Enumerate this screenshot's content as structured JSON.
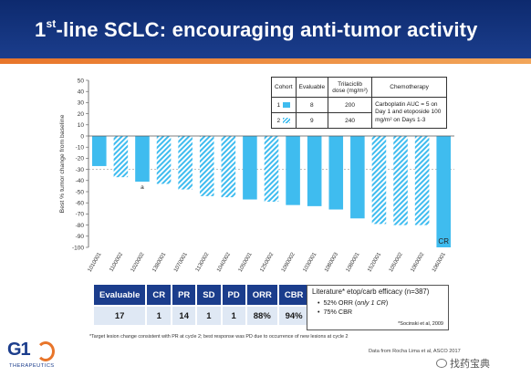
{
  "slide": {
    "title_prefix": "1",
    "title_sup": "st",
    "title_rest": "-line SCLC: encouraging anti-tumor activity",
    "footnote": "*Target lesion change consistent with PR at cycle 2; best response was PD due to occurrence of new lesions at cycle 2",
    "source": "Data from Rocha Lima et al, ASCO 2017",
    "logo_main": "G1",
    "logo_sub": "THERAPEUTICS",
    "watermark": "找药宝典"
  },
  "colors": {
    "navy": "#1b3d8c",
    "bar": "#3fbcef",
    "accent": "#e8752a"
  },
  "chart_data": {
    "type": "bar",
    "ylabel": "Best % tumor change from baseline",
    "ylim": [
      -100,
      50
    ],
    "yticks": [
      50,
      40,
      30,
      20,
      10,
      0,
      -10,
      -20,
      -30,
      -40,
      -50,
      -60,
      -70,
      -80,
      -90,
      -100
    ],
    "reference_line": -30,
    "categories": [
      "1010001",
      "1100002",
      "1020002",
      "1380001",
      "1070001",
      "1130002",
      "1040002",
      "1050001",
      "1250002",
      "1090002",
      "1030001",
      "1080003",
      "1080001",
      "1520001",
      "1050002",
      "1060002",
      "1060001"
    ],
    "values": [
      -27,
      -37,
      -41,
      -43,
      -48,
      -54,
      -55,
      -57,
      -59,
      -62,
      -63,
      -66,
      -74,
      -79,
      -80,
      -80,
      -100
    ],
    "cohort": [
      1,
      2,
      1,
      2,
      2,
      2,
      2,
      1,
      2,
      1,
      1,
      1,
      1,
      2,
      2,
      2,
      1
    ],
    "bar_annotations": [
      {
        "index": 2,
        "text": "a"
      },
      {
        "index": 16,
        "text": "CR"
      }
    ]
  },
  "cohort_table": {
    "headers": [
      "Cohort",
      "Evaluable",
      "Trilaciclib dose (mg/m²)",
      "Chemotherapy"
    ],
    "rows": [
      {
        "cohort": "1",
        "pattern": "solid",
        "evaluable": "8",
        "dose": "200"
      },
      {
        "cohort": "2",
        "pattern": "hatched",
        "evaluable": "9",
        "dose": "240"
      }
    ],
    "chemotherapy": "Carboplatin AUC = 5 on Day 1 and etoposide 100 mg/m² on Days 1-3"
  },
  "results_table": {
    "headers": [
      "Evaluable",
      "CR",
      "PR",
      "SD",
      "PD",
      "ORR",
      "CBR"
    ],
    "values": [
      "17",
      "1",
      "14",
      "1",
      "1",
      "88%",
      "94%"
    ]
  },
  "literature": {
    "title": "Literature* etop/carb efficacy (n=387)",
    "orr_prefix": "52% ORR (",
    "orr_italic": "only 1 CR",
    "orr_suffix": ")",
    "cbr": "75% CBR",
    "bullet": "•",
    "reference": "*Socinski et al, 2009"
  }
}
